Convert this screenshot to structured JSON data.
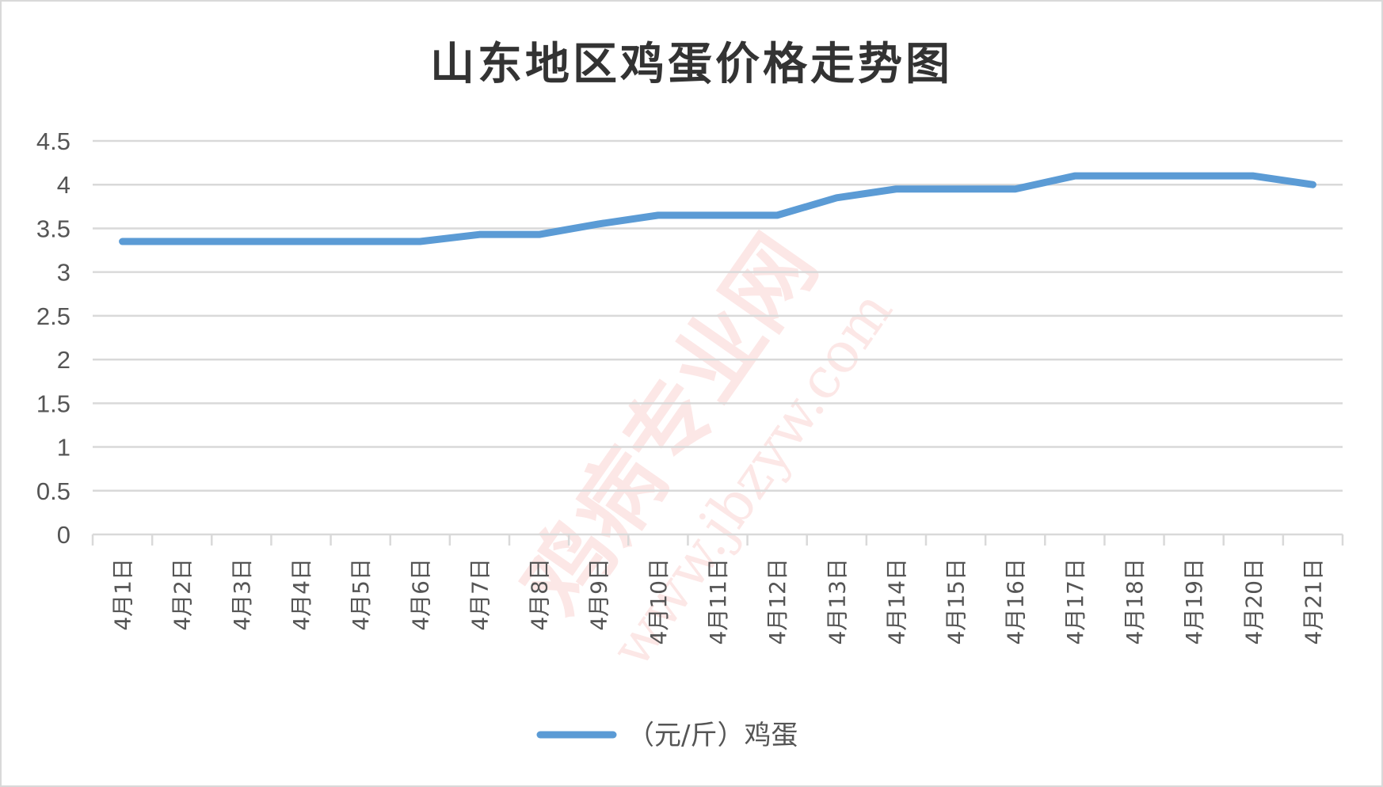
{
  "chart_data": {
    "type": "line",
    "title": "山东地区鸡蛋价格走势图",
    "categories": [
      "4月1日",
      "4月2日",
      "4月3日",
      "4月4日",
      "4月5日",
      "4月6日",
      "4月7日",
      "4月8日",
      "4月9日",
      "4月10日",
      "4月11日",
      "4月12日",
      "4月13日",
      "4月14日",
      "4月15日",
      "4月16日",
      "4月17日",
      "4月18日",
      "4月19日",
      "4月20日",
      "4月21日"
    ],
    "series": [
      {
        "name": "（元/斤）鸡蛋",
        "color": "#5b9bd5",
        "values": [
          3.35,
          3.35,
          3.35,
          3.35,
          3.35,
          3.35,
          3.43,
          3.43,
          3.55,
          3.65,
          3.65,
          3.65,
          3.85,
          3.95,
          3.95,
          3.95,
          4.1,
          4.1,
          4.1,
          4.1,
          4.0
        ]
      }
    ],
    "ylim": [
      0,
      4.5
    ],
    "yticks": [
      "0",
      "0.5",
      "1",
      "1.5",
      "2",
      "2.5",
      "3",
      "3.5",
      "4",
      "4.5"
    ],
    "grid": true,
    "legend": "bottom",
    "xlabel": "",
    "ylabel": ""
  },
  "watermark": {
    "text": "鸡病专业网",
    "url": "www.jbzyw.com"
  }
}
